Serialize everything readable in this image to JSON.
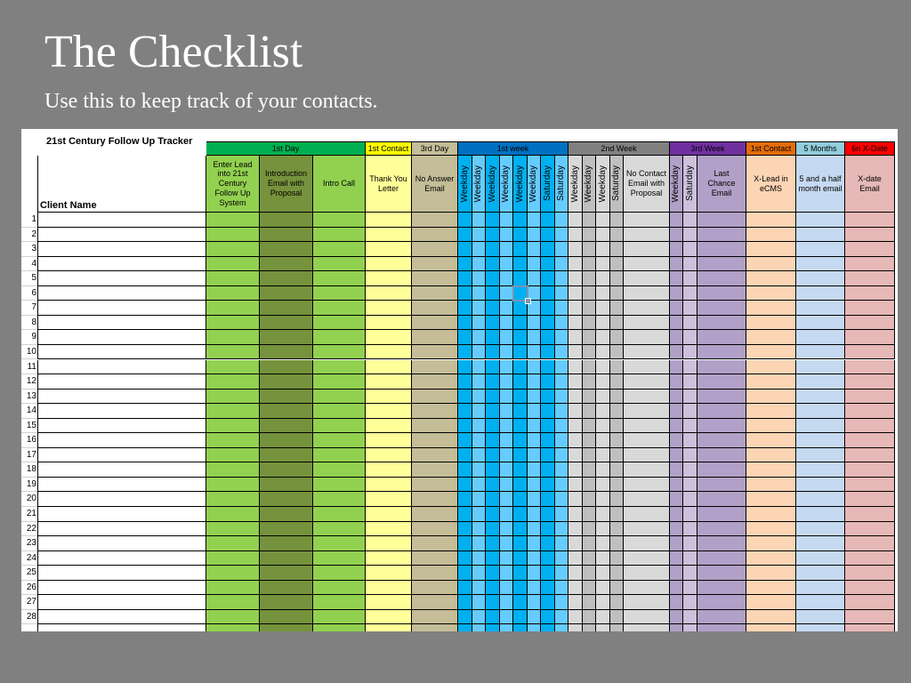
{
  "slide": {
    "title": "The Checklist",
    "subtitle": "Use this to keep track of your contacts."
  },
  "sheet": {
    "tracker_title": "21st Century Follow Up Tracker",
    "client_name_label": "Client Name",
    "rows": [
      "1",
      "2",
      "3",
      "4",
      "5",
      "6",
      "7",
      "8",
      "9",
      "10",
      "11",
      "12",
      "13",
      "14",
      "15",
      "16",
      "17",
      "18",
      "19",
      "20",
      "21",
      "22",
      "23",
      "24",
      "25",
      "26",
      "27",
      "28"
    ],
    "groups": [
      {
        "label": "1st Day",
        "color": "#00b050",
        "cols": 3
      },
      {
        "label": "1st Contact",
        "color": "#ffff00",
        "cols": 1
      },
      {
        "label": "3rd Day",
        "color": "#c4bd97",
        "cols": 1
      },
      {
        "label": "1st week",
        "color": "#0070c0",
        "cols": 8
      },
      {
        "label": "2nd Week",
        "color": "#808080",
        "cols": 5
      },
      {
        "label": "3rd Week",
        "color": "#7030a0",
        "cols": 3
      },
      {
        "label": "1st Contact",
        "color": "#e46c0a",
        "cols": 1
      },
      {
        "label": "5 Months",
        "color": "#92cddc",
        "cols": 1
      },
      {
        "label": "6n X-Date",
        "color": "#ff0000",
        "cols": 1
      }
    ],
    "columns": [
      {
        "label": "Enter Lead into 21st Century Follow Up System",
        "vertical": false,
        "color": "#92d050"
      },
      {
        "label": "Introduction Email with Proposal",
        "vertical": false,
        "color": "#76923c"
      },
      {
        "label": "Intro Call",
        "vertical": false,
        "color": "#92d050"
      },
      {
        "label": "Thank You Letter",
        "vertical": false,
        "color": "#ffff99"
      },
      {
        "label": "No Answer Email",
        "vertical": false,
        "color": "#c4bd97"
      },
      {
        "label": "Weekday",
        "vertical": true,
        "color": "#00b0f0"
      },
      {
        "label": "Weekday",
        "vertical": true,
        "color": "#66ccff"
      },
      {
        "label": "Weekday",
        "vertical": true,
        "color": "#00b0f0"
      },
      {
        "label": "Weekday",
        "vertical": true,
        "color": "#66ccff"
      },
      {
        "label": "Weekday",
        "vertical": true,
        "color": "#00b0f0"
      },
      {
        "label": "Weekday",
        "vertical": true,
        "color": "#66ccff"
      },
      {
        "label": "Saturday",
        "vertical": true,
        "color": "#00b0f0"
      },
      {
        "label": "Saturday",
        "vertical": true,
        "color": "#66ccff"
      },
      {
        "label": "Weekday",
        "vertical": true,
        "color": "#d9d9d9"
      },
      {
        "label": "Weekday",
        "vertical": true,
        "color": "#bfbfbf"
      },
      {
        "label": "Weekday",
        "vertical": true,
        "color": "#d9d9d9"
      },
      {
        "label": "Saturday",
        "vertical": true,
        "color": "#bfbfbf"
      },
      {
        "label": "No Contact Email with Proposal",
        "vertical": false,
        "color": "#d9d9d9"
      },
      {
        "label": "Weekday",
        "vertical": true,
        "color": "#b1a0c7"
      },
      {
        "label": "Saturday",
        "vertical": true,
        "color": "#ccc0da"
      },
      {
        "label": "Last Chance Email",
        "vertical": false,
        "color": "#b1a0c7"
      },
      {
        "label": "X-Lead in eCMS",
        "vertical": false,
        "color": "#fcd5b4"
      },
      {
        "label": "5 and a half month email",
        "vertical": false,
        "color": "#c5d9f1"
      },
      {
        "label": "X-date Email",
        "vertical": false,
        "color": "#e6b8b7"
      }
    ]
  }
}
